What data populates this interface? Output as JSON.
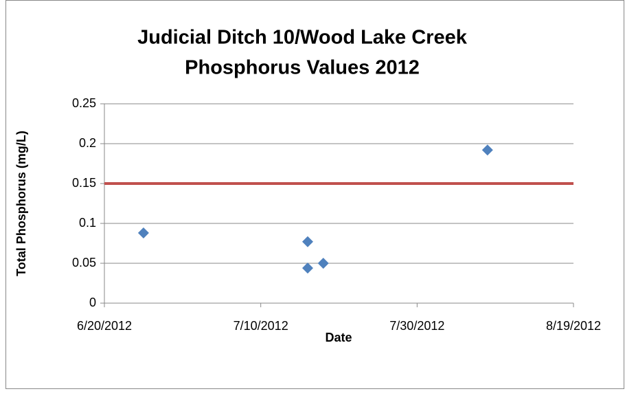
{
  "chart_data": {
    "type": "scatter",
    "title": [
      "Judicial Ditch 10/Wood Lake Creek",
      "Phosphorus Values 2012"
    ],
    "x_label": "Date",
    "y_label": "Total Phosphorus (mg/L)",
    "series": [
      {
        "color": "#4f81bd",
        "x": [
          "2012-06-25",
          "2012-07-16",
          "2012-07-16",
          "2012-07-18",
          "2012-08-08"
        ],
        "values": [
          0.088,
          0.077,
          0.044,
          0.05,
          0.192
        ]
      }
    ],
    "reference_line": {
      "value": 0.15,
      "color": "#c0504d"
    },
    "xlim": [
      "2012-06-20",
      "2012-08-19"
    ],
    "xticks": [
      {
        "value": "2012-06-20",
        "label": "6/20/2012"
      },
      {
        "value": "2012-07-10",
        "label": "7/10/2012"
      },
      {
        "value": "2012-07-30",
        "label": "7/30/2012"
      },
      {
        "value": "2012-08-19",
        "label": "8/19/2012"
      }
    ],
    "ylim": [
      0,
      0.25
    ],
    "yticks": [
      0,
      0.05,
      0.1,
      0.15,
      0.2,
      0.25
    ],
    "grid": true
  }
}
